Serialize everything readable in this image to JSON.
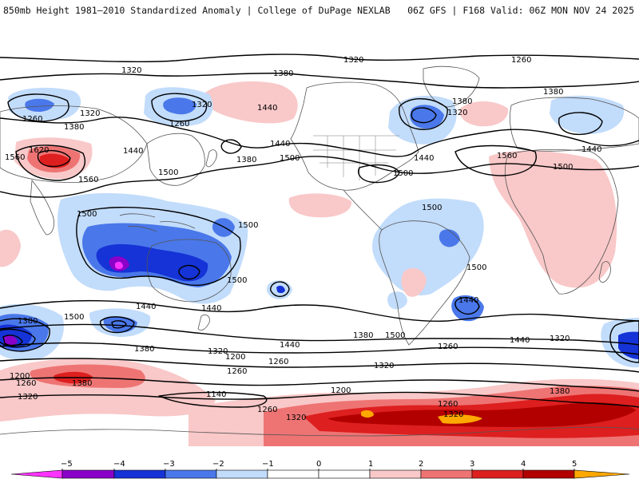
{
  "header": {
    "left_title": "850mb Height 1981–2010 Standardized Anomaly | College of DuPage NEXLAB",
    "right_title": "06Z GFS | F168 Valid: 06Z MON NOV 24 2025"
  },
  "colors": {
    "neg5": "#ff33ff",
    "neg4": "#8a00c8",
    "neg3": "#1533d6",
    "neg2": "#4a78ea",
    "neg1": "#c2dcfb",
    "zero": "#ffffff",
    "pos1": "#f9c8c8",
    "pos2": "#ee7474",
    "pos3": "#dd1f1f",
    "pos4": "#b20000",
    "pos5": "#ffa800"
  },
  "colorbar": {
    "ticks": [
      "−5",
      "−4",
      "−3",
      "−2",
      "−1",
      "0",
      "1",
      "2",
      "3",
      "4",
      "5"
    ]
  },
  "contour_labels": {
    "c1320_a": "1320",
    "c1320_b": "1320",
    "c1320_c": "1320",
    "c1320_d": "1320",
    "c1320_e": "1320",
    "c1320_f": "1320",
    "c1320_g": "1320",
    "c1320_h": "1320",
    "c1320_i": "1320",
    "c1320_j": "1320",
    "c1320_k": "1320",
    "c1380_a": "1380",
    "c1380_b": "1380",
    "c1380_c": "1380",
    "c1380_d": "1380",
    "c1380_e": "1380",
    "c1380_f": "1380",
    "c1380_g": "1380",
    "c1380_h": "1380",
    "c1380_i": "1380",
    "c1380_j": "1380",
    "c1440_a": "1440",
    "c1440_b": "1440",
    "c1440_c": "1440",
    "c1440_d": "1440",
    "c1440_e": "1440",
    "c1440_f": "1440",
    "c1440_g": "1440",
    "c1440_h": "1440",
    "c1440_i": "1440",
    "c1440_j": "1440",
    "c1500_a": "1500",
    "c1500_b": "1500",
    "c1500_c": "1500",
    "c1500_d": "1500",
    "c1500_e": "1500",
    "c1500_f": "1500",
    "c1500_g": "1500",
    "c1500_h": "1500",
    "c1500_i": "1500",
    "c1500_j": "1500",
    "c1500_k": "1500",
    "c1560_a": "1560",
    "c1560_b": "1560",
    "c1560_c": "1560",
    "c1620_a": "1620",
    "c1260_a": "1260",
    "c1260_b": "1260",
    "c1260_c": "1260",
    "c1260_d": "1260",
    "c1260_e": "1260",
    "c1260_f": "1260",
    "c1260_g": "1260",
    "c1260_h": "1260",
    "c1260_i": "1260",
    "c1200_a": "1200",
    "c1200_b": "1200",
    "c1200_c": "1200",
    "c1140_a": "1140"
  }
}
